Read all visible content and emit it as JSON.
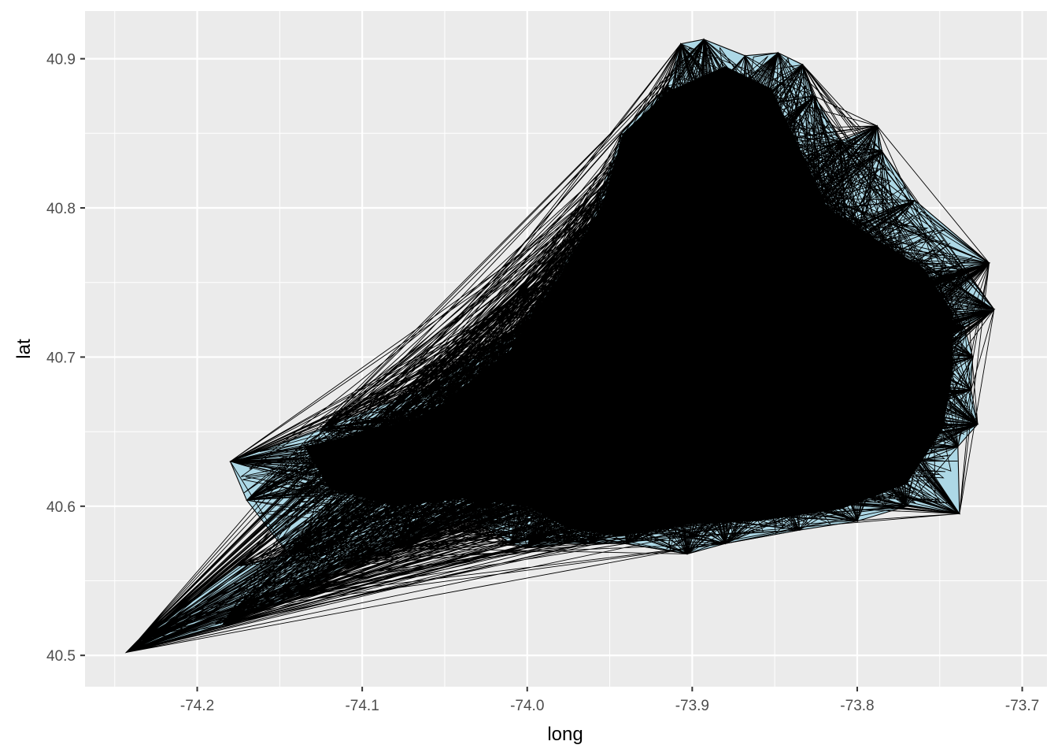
{
  "chart_data": {
    "type": "polygon",
    "title": "",
    "xlabel": "long",
    "ylabel": "lat",
    "xlim": [
      -74.268,
      -73.685
    ],
    "ylim": [
      40.479,
      40.932
    ],
    "x_ticks": [
      -74.2,
      -74.1,
      -74.0,
      -73.9,
      -73.8,
      -73.7
    ],
    "x_tick_labels": [
      "-74.2",
      "-74.1",
      "-74.0",
      "-73.9",
      "-73.8",
      "-73.7"
    ],
    "y_ticks": [
      40.5,
      40.6,
      40.7,
      40.8,
      40.9
    ],
    "y_tick_labels": [
      "40.5",
      "40.6",
      "40.7",
      "40.8",
      "40.9"
    ],
    "grid": true,
    "legend": "none",
    "series": [
      {
        "outline": [
          [
            -74.243,
            40.502
          ],
          [
            -74.236,
            40.51
          ],
          [
            -74.175,
            40.56
          ],
          [
            -74.145,
            40.568
          ],
          [
            -74.17,
            40.604
          ],
          [
            -74.18,
            40.63
          ],
          [
            -74.125,
            40.652
          ],
          [
            -74.06,
            40.68
          ],
          [
            -74.01,
            40.715
          ],
          [
            -73.985,
            40.75
          ],
          [
            -73.962,
            40.79
          ],
          [
            -73.943,
            40.85
          ],
          [
            -73.915,
            40.882
          ],
          [
            -73.907,
            40.91
          ],
          [
            -73.893,
            40.913
          ],
          [
            -73.868,
            40.902
          ],
          [
            -73.848,
            40.904
          ],
          [
            -73.833,
            40.896
          ],
          [
            -73.826,
            40.875
          ],
          [
            -73.81,
            40.845
          ],
          [
            -73.788,
            40.855
          ],
          [
            -73.785,
            40.838
          ],
          [
            -73.765,
            40.805
          ],
          [
            -73.72,
            40.763
          ],
          [
            -73.735,
            40.758
          ],
          [
            -73.717,
            40.732
          ],
          [
            -73.735,
            40.72
          ],
          [
            -73.73,
            40.7
          ],
          [
            -73.731,
            40.678
          ],
          [
            -73.727,
            40.655
          ],
          [
            -73.739,
            40.64
          ],
          [
            -73.738,
            40.595
          ],
          [
            -73.77,
            40.6
          ],
          [
            -73.8,
            40.59
          ],
          [
            -73.835,
            40.584
          ],
          [
            -73.88,
            40.575
          ],
          [
            -73.903,
            40.568
          ],
          [
            -73.94,
            40.575
          ],
          [
            -73.962,
            40.575
          ],
          [
            -73.978,
            40.575
          ],
          [
            -74.0,
            40.572
          ],
          [
            -74.01,
            40.575
          ],
          [
            -74.035,
            40.592
          ],
          [
            -74.08,
            40.572
          ],
          [
            -74.11,
            40.56
          ],
          [
            -74.14,
            40.54
          ],
          [
            -74.185,
            40.52
          ],
          [
            -74.243,
            40.502
          ]
        ],
        "core": [
          [
            -74.135,
            40.64
          ],
          [
            -74.06,
            40.66
          ],
          [
            -74.01,
            40.705
          ],
          [
            -73.98,
            40.755
          ],
          [
            -73.955,
            40.8
          ],
          [
            -73.942,
            40.85
          ],
          [
            -73.915,
            40.878
          ],
          [
            -73.88,
            40.895
          ],
          [
            -73.852,
            40.88
          ],
          [
            -73.835,
            40.84
          ],
          [
            -73.818,
            40.8
          ],
          [
            -73.79,
            40.78
          ],
          [
            -73.76,
            40.76
          ],
          [
            -73.742,
            40.73
          ],
          [
            -73.742,
            40.69
          ],
          [
            -73.748,
            40.652
          ],
          [
            -73.77,
            40.615
          ],
          [
            -73.81,
            40.598
          ],
          [
            -73.86,
            40.59
          ],
          [
            -73.9,
            40.588
          ],
          [
            -73.945,
            40.58
          ],
          [
            -73.975,
            40.585
          ],
          [
            -74.0,
            40.6
          ],
          [
            -74.04,
            40.605
          ],
          [
            -74.08,
            40.6
          ],
          [
            -74.12,
            40.612
          ]
        ],
        "extremes": [
          [
            -74.243,
            40.502
          ],
          [
            -74.236,
            40.51
          ],
          [
            -74.18,
            40.63
          ],
          [
            -74.145,
            40.568
          ],
          [
            -73.907,
            40.91
          ],
          [
            -73.893,
            40.913
          ],
          [
            -73.848,
            40.904
          ],
          [
            -73.826,
            40.875
          ],
          [
            -73.788,
            40.855
          ],
          [
            -73.72,
            40.763
          ],
          [
            -73.717,
            40.732
          ],
          [
            -73.727,
            40.655
          ],
          [
            -73.738,
            40.595
          ],
          [
            -73.88,
            40.575
          ],
          [
            -73.903,
            40.568
          ],
          [
            -73.962,
            40.575
          ],
          [
            -74.0,
            40.572
          ],
          [
            -74.08,
            40.572
          ],
          [
            -74.185,
            40.52
          ]
        ]
      }
    ]
  },
  "colors": {
    "panel": "#EBEBEB",
    "grid_major": "#FFFFFF",
    "fill": "#ADD8E6",
    "stroke": "#000000"
  }
}
